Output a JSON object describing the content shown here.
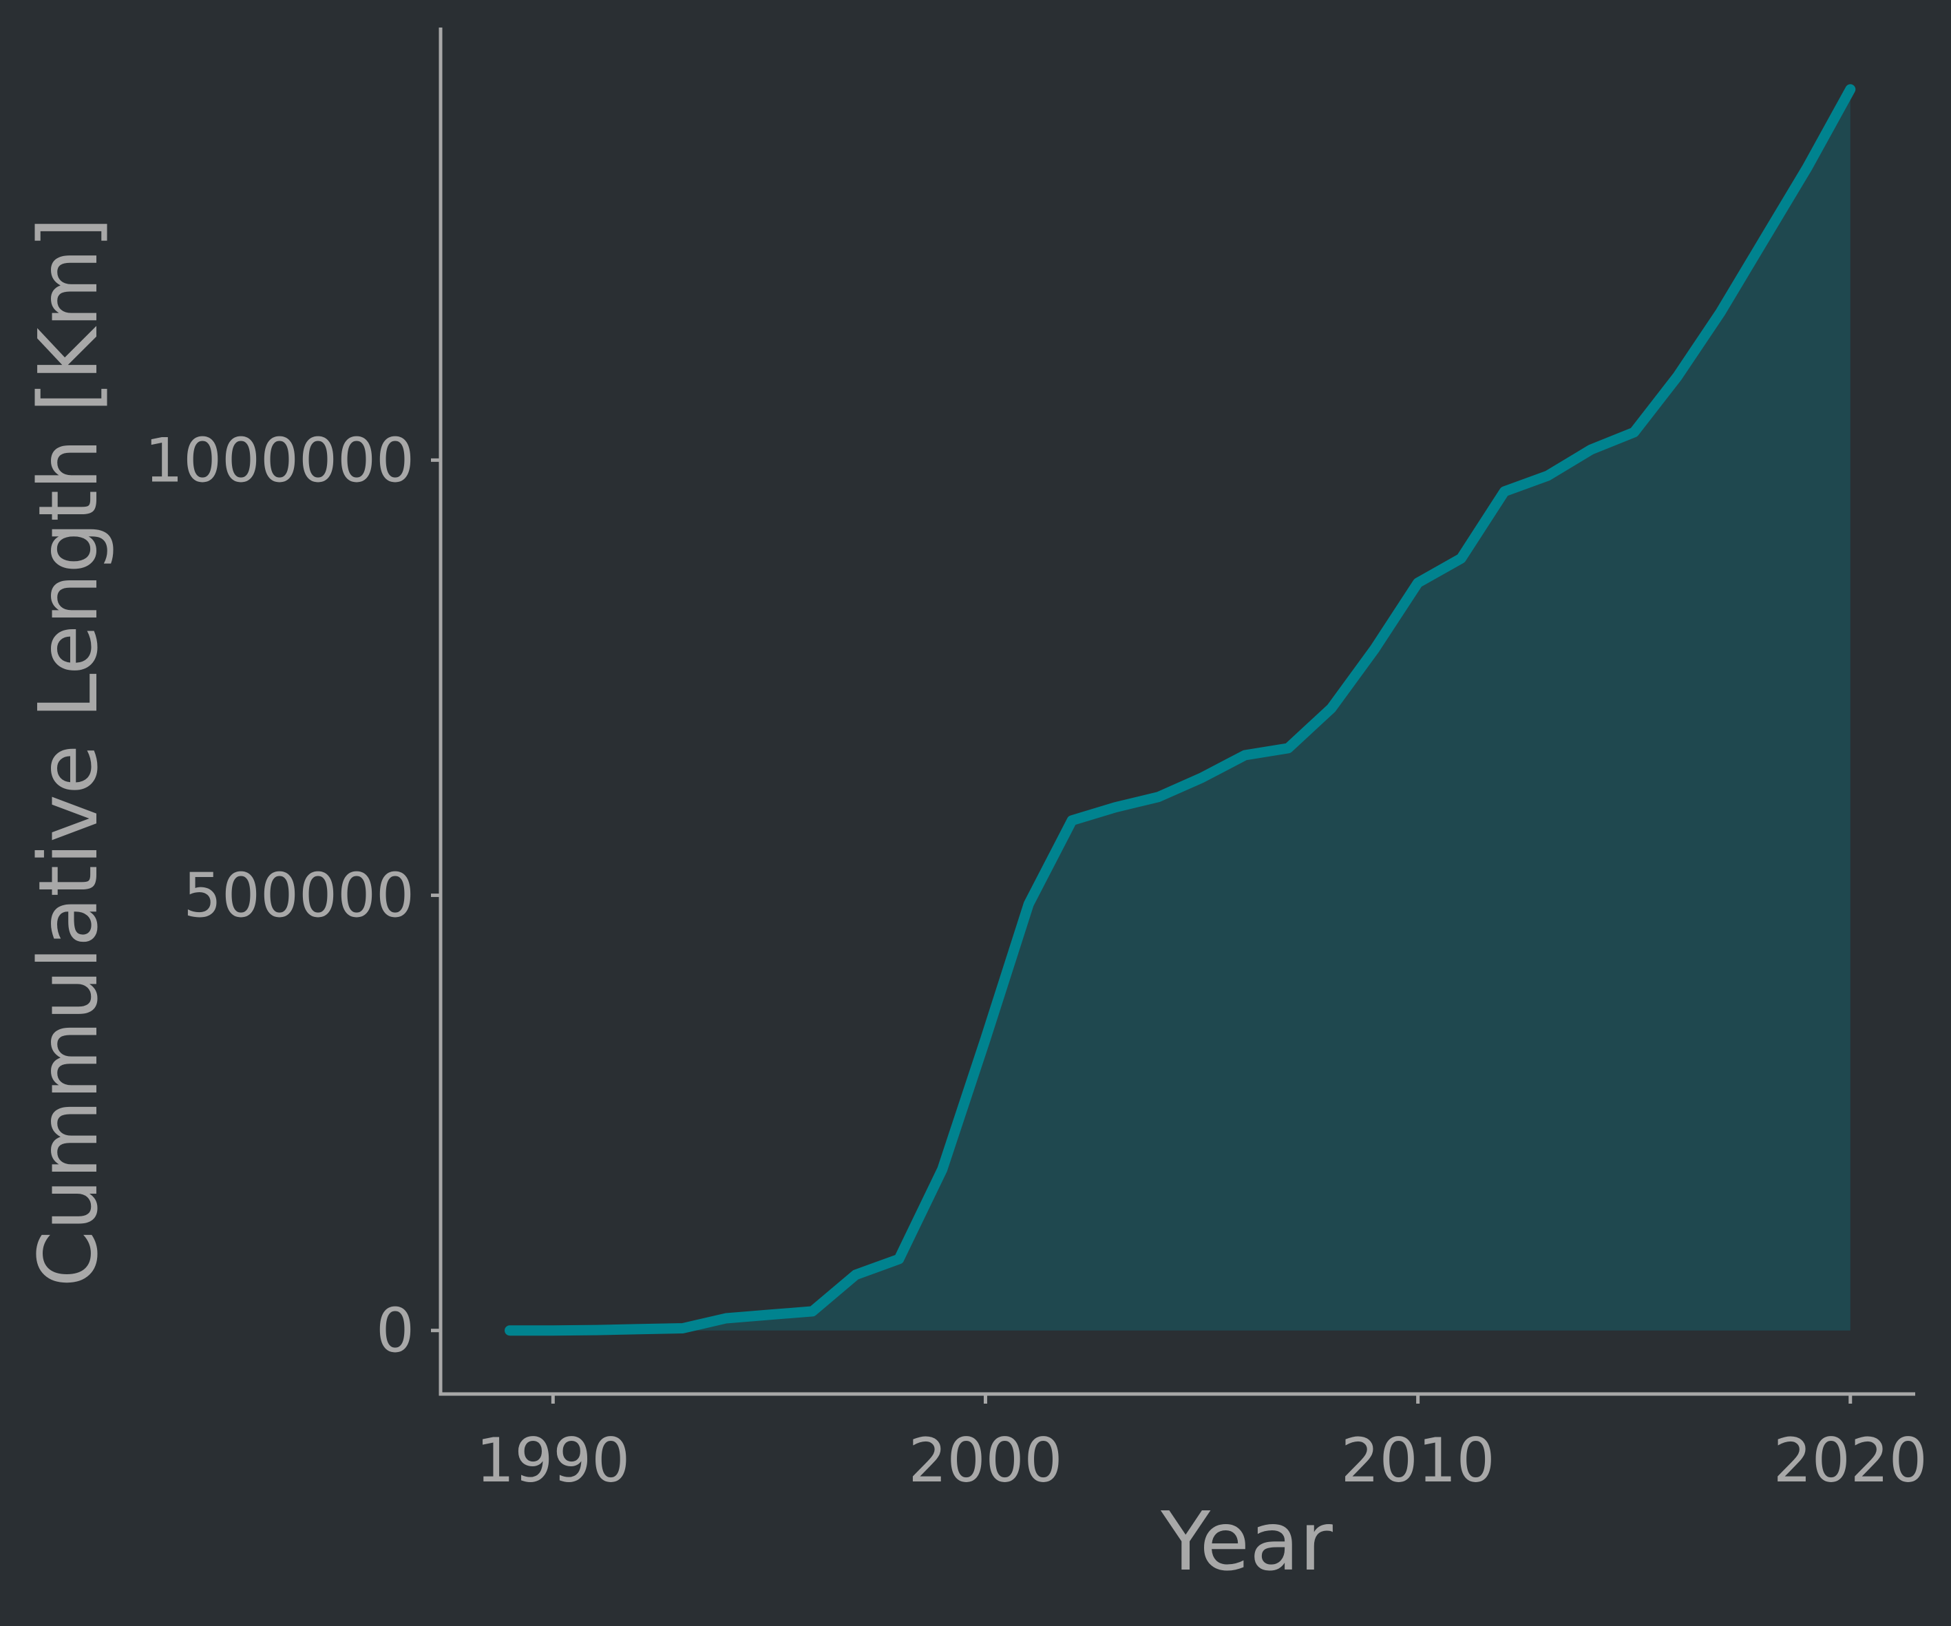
{
  "chart_data": {
    "type": "area",
    "title": "",
    "xlabel": "Year",
    "ylabel": "Cummulative Length [Km]",
    "xlim": [
      1987.4,
      2021.5
    ],
    "ylim": [
      -73000,
      1497000
    ],
    "x_ticks": [
      1990,
      2000,
      2010,
      2020
    ],
    "x_tick_labels": [
      "1990",
      "2000",
      "2010",
      "2020"
    ],
    "y_ticks": [
      0,
      500000,
      1000000
    ],
    "y_tick_labels": [
      "0",
      "500000",
      "1000000"
    ],
    "grid": false,
    "legend": "none",
    "colors": {
      "background": "#2a2f33",
      "axis": "#a8a8a8",
      "text": "#a8a8a8",
      "line": "#00838f",
      "fill": "#1f484f"
    },
    "series": [
      {
        "x": [
          1989,
          1990,
          1991,
          1992,
          1993,
          1994,
          1995,
          1996,
          1997,
          1998,
          1999,
          2000,
          2001,
          2002,
          2003,
          2004,
          2005,
          2006,
          2007,
          2008,
          2009,
          2010,
          2011,
          2012,
          2013,
          2014,
          2015,
          2016,
          2017,
          2018,
          2019,
          2020
        ],
        "values": [
          0,
          0,
          500,
          1500,
          2500,
          14000,
          18000,
          22000,
          64000,
          82000,
          185000,
          335000,
          490000,
          586000,
          601000,
          613000,
          635000,
          661000,
          669000,
          715000,
          783000,
          859000,
          887000,
          964000,
          982000,
          1012000,
          1032000,
          1096000,
          1170000,
          1253000,
          1336000,
          1426000
        ]
      }
    ]
  }
}
